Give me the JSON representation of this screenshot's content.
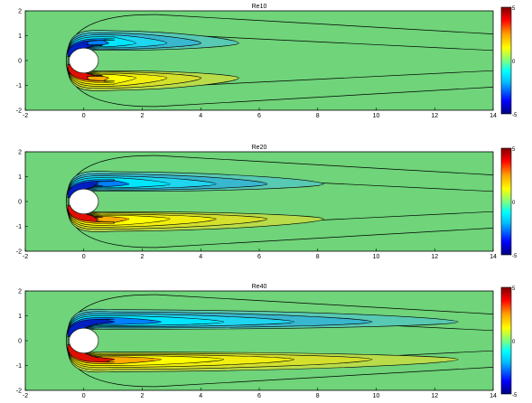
{
  "chart_data": [
    {
      "type": "heatmap",
      "subtype": "filled-contour",
      "title": "Re10",
      "xlim": [
        -2,
        14
      ],
      "ylim": [
        -2,
        2
      ],
      "xticks": [
        "-2",
        "0",
        "2",
        "4",
        "6",
        "8",
        "10",
        "12",
        "14"
      ],
      "yticks": [
        "2",
        "1",
        "0",
        "-1",
        "-2"
      ],
      "colorbar": {
        "min": -5,
        "max": 5,
        "ticks": [
          "5",
          "0",
          "-5"
        ]
      },
      "obstacle": {
        "shape": "circle",
        "center": [
          0,
          0
        ],
        "radius": 0.5
      },
      "wake": {
        "positive_lobe": {
          "center_y": -0.7,
          "extent_x": 5.3
        },
        "negative_lobe": {
          "center_y": 0.7,
          "extent_x": 5.3
        },
        "outer_contour_extent_x": 14
      }
    },
    {
      "type": "heatmap",
      "subtype": "filled-contour",
      "title": "Re20",
      "xlim": [
        -2,
        14
      ],
      "ylim": [
        -2,
        2
      ],
      "xticks": [
        "-2",
        "0",
        "2",
        "4",
        "6",
        "8",
        "10",
        "12",
        "14"
      ],
      "yticks": [
        "2",
        "1",
        "0",
        "-1",
        "-2"
      ],
      "colorbar": {
        "min": -5,
        "max": 5,
        "ticks": [
          "5",
          "0",
          "-5"
        ]
      },
      "obstacle": {
        "shape": "circle",
        "center": [
          0,
          0
        ],
        "radius": 0.5
      },
      "wake": {
        "positive_lobe": {
          "center_y": -0.7,
          "extent_x": 8.2
        },
        "negative_lobe": {
          "center_y": 0.7,
          "extent_x": 8.2
        },
        "outer_contour_extent_x": 14
      }
    },
    {
      "type": "heatmap",
      "subtype": "filled-contour",
      "title": "Re40",
      "xlim": [
        -2,
        14
      ],
      "ylim": [
        -2,
        2
      ],
      "xticks": [
        "-2",
        "0",
        "2",
        "4",
        "6",
        "8",
        "10",
        "12",
        "14"
      ],
      "yticks": [
        "2",
        "1",
        "0",
        "-1",
        "-2"
      ],
      "colorbar": {
        "min": -5,
        "max": 5,
        "ticks": [
          "5",
          "0",
          "-5"
        ]
      },
      "obstacle": {
        "shape": "circle",
        "center": [
          0,
          0
        ],
        "radius": 0.5
      },
      "wake": {
        "positive_lobe": {
          "center_y": -0.75,
          "extent_x": 12.8
        },
        "negative_lobe": {
          "center_y": 0.75,
          "extent_x": 12.8
        },
        "outer_contour_extent_x": 14
      }
    }
  ],
  "colors": {
    "background_field": "#6fd47a",
    "colormap": [
      "#00007f",
      "#0000ff",
      "#007fff",
      "#00ffff",
      "#7fff7f",
      "#ffff00",
      "#ff7f00",
      "#ff0000",
      "#7f0000"
    ]
  }
}
